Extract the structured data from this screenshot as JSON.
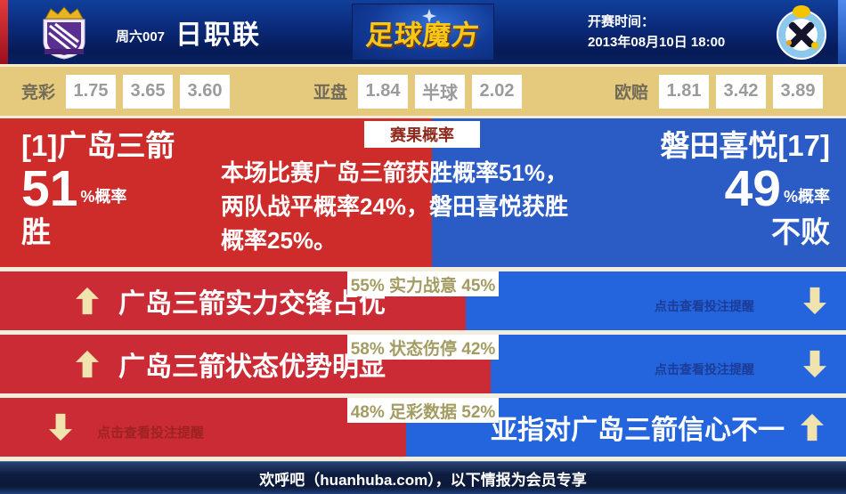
{
  "header": {
    "match_tag": "周六007",
    "league": "日职联",
    "logo_text": "足球魔方",
    "kickoff_label": "开赛时间：",
    "kickoff_time": "2013年08月10日 18:00"
  },
  "odds": {
    "jingcai": {
      "label": "竞彩",
      "values": [
        "1.75",
        "3.65",
        "3.60"
      ]
    },
    "yapan": {
      "label": "亚盘",
      "values": [
        "1.84",
        "半球",
        "2.02"
      ]
    },
    "oupei": {
      "label": "欧赔",
      "values": [
        "1.81",
        "3.42",
        "3.89"
      ]
    }
  },
  "result_probability": {
    "badge": "赛果概率",
    "home": {
      "name": "[1]广岛三箭",
      "percent": "51",
      "percent_suffix": "%概率",
      "outcome": "胜",
      "split_percent": 51
    },
    "away": {
      "name": "磐田喜悦[17]",
      "percent": "49",
      "percent_suffix": "%概率",
      "outcome": "不败"
    },
    "description_lines": [
      "本场比赛广岛三箭获胜概率51%，",
      "两队战平概率24%，磐田喜悦获胜",
      "概率25%。"
    ]
  },
  "factor_rows": [
    {
      "home_percent": 55,
      "away_percent": 45,
      "label": "55% 实力战意 45%",
      "left_text": "广岛三箭实力交锋占优",
      "left_arrow": "up",
      "right_text": "点击查看投注提醒",
      "right_arrow": "down"
    },
    {
      "home_percent": 58,
      "away_percent": 42,
      "label": "58% 状态伤停 42%",
      "left_text": "广岛三箭状态优势明显",
      "left_arrow": "up",
      "right_text": "点击查看投注提醒",
      "right_arrow": "down"
    },
    {
      "home_percent": 48,
      "away_percent": 52,
      "label": "48% 足彩数据 52%",
      "left_text": "点击查看投注提醒",
      "left_arrow": "down",
      "right_text": "亚指对广岛三箭信心不一",
      "right_arrow": "up"
    }
  ],
  "footer": {
    "text": "欢呼吧（huanhuba.com），以下情报为会员专享"
  },
  "colors": {
    "home_red": "#ce2b2b",
    "away_blue": "#2b5cc6",
    "row_blue": "#2465dd",
    "odds_gold": "#e5c97d",
    "arrow_gold": "#f1e3ae",
    "logo_gold": "#f8c818"
  }
}
